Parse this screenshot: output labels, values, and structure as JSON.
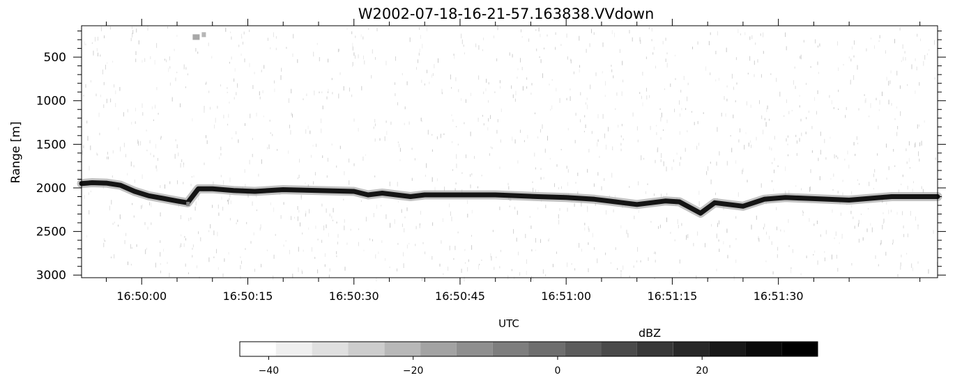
{
  "chart_data": {
    "type": "heatmap",
    "title": "W2002-07-18-16-21-57.163838.VVdown",
    "xlabel": "UTC",
    "ylabel": "Range [m]",
    "x_range": [
      "16:49:51.5",
      "16:51:44.5"
    ],
    "y_range": [
      3030,
      140
    ],
    "y_ticks": [
      500,
      1000,
      1500,
      2000,
      2500,
      3000
    ],
    "x_ticks": [
      "16:50:00",
      "16:50:15",
      "16:50:30",
      "16:50:45",
      "16:51:00",
      "16:51:15",
      "16:51:30"
    ],
    "x_tick_seconds": [
      0,
      15,
      30,
      45,
      60,
      75,
      90
    ],
    "grid": false,
    "surface_echo": {
      "time_s": [
        -8.5,
        -7,
        -5,
        -3,
        -1,
        1,
        3,
        5,
        6.5,
        8,
        10,
        13,
        16,
        20,
        25,
        30,
        32,
        34,
        36,
        38,
        40,
        44,
        50,
        56,
        60,
        64,
        67,
        70,
        74,
        76,
        79,
        81,
        85,
        88,
        91,
        94,
        97,
        100,
        103,
        106,
        110,
        112.5
      ],
      "range_m": [
        1950,
        1940,
        1945,
        1970,
        2040,
        2090,
        2120,
        2150,
        2170,
        2010,
        2010,
        2030,
        2040,
        2020,
        2030,
        2040,
        2080,
        2060,
        2080,
        2100,
        2080,
        2080,
        2080,
        2100,
        2110,
        2130,
        2160,
        2190,
        2150,
        2160,
        2290,
        2170,
        2210,
        2130,
        2110,
        2120,
        2130,
        2140,
        2120,
        2100,
        2100,
        2100
      ]
    },
    "clutter_patch": {
      "time_s": 7.5,
      "range_m": 270
    },
    "colorbar": {
      "label": "dBZ",
      "min": -44,
      "max": 36,
      "step": 5,
      "ticks": [
        -40,
        -20,
        0,
        20
      ],
      "tick_labels": [
        "−40",
        "−20",
        "0",
        "20"
      ],
      "colors": [
        "#ffffff",
        "#f0f0f0",
        "#e0e0e0",
        "#cdcdcd",
        "#b8b8b8",
        "#a3a3a3",
        "#8f8f8f",
        "#7e7e7e",
        "#6e6e6e",
        "#5c5c5c",
        "#4a4a4a",
        "#383838",
        "#282828",
        "#181818",
        "#0a0a0a",
        "#000000"
      ]
    }
  }
}
